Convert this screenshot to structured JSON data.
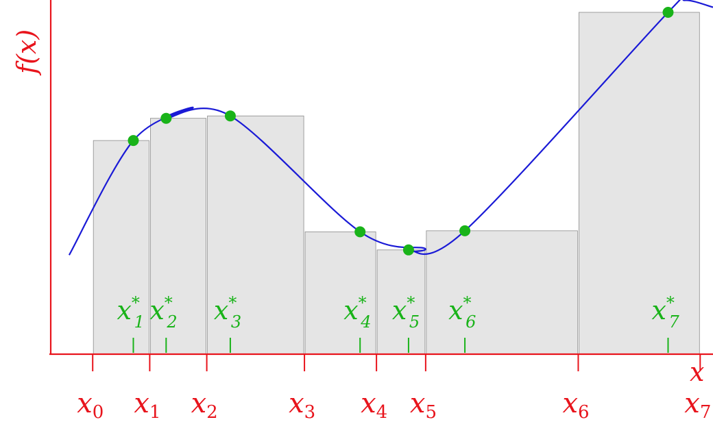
{
  "chart_data": {
    "type": "diagram",
    "axis_labels": {
      "x": "x",
      "y": "f(x)"
    },
    "partition_labels": [
      "x",
      "x",
      "x",
      "x",
      "x",
      "x",
      "x",
      "x"
    ],
    "partition_subscripts": [
      "0",
      "1",
      "2",
      "3",
      "4",
      "5",
      "6",
      "7"
    ],
    "sample_labels": [
      "x",
      "x",
      "x",
      "x",
      "x",
      "x",
      "x"
    ],
    "sample_subscripts": [
      "1",
      "2",
      "3",
      "4",
      "5",
      "6",
      "7"
    ],
    "sample_superscript": "*",
    "partition_points": [
      0.13,
      0.21,
      0.29,
      0.427,
      0.528,
      0.597,
      0.811,
      0.982
    ],
    "sample_points": [
      0.187,
      0.233,
      0.323,
      0.505,
      0.573,
      0.652,
      0.937
    ],
    "sample_values": [
      0.625,
      0.69,
      0.697,
      0.358,
      0.305,
      0.361,
      1.0
    ],
    "colors": {
      "axis": "#e8141c",
      "curve": "#1a1ad6",
      "samples": "#19b319",
      "bars": "#e5e5e5"
    }
  }
}
